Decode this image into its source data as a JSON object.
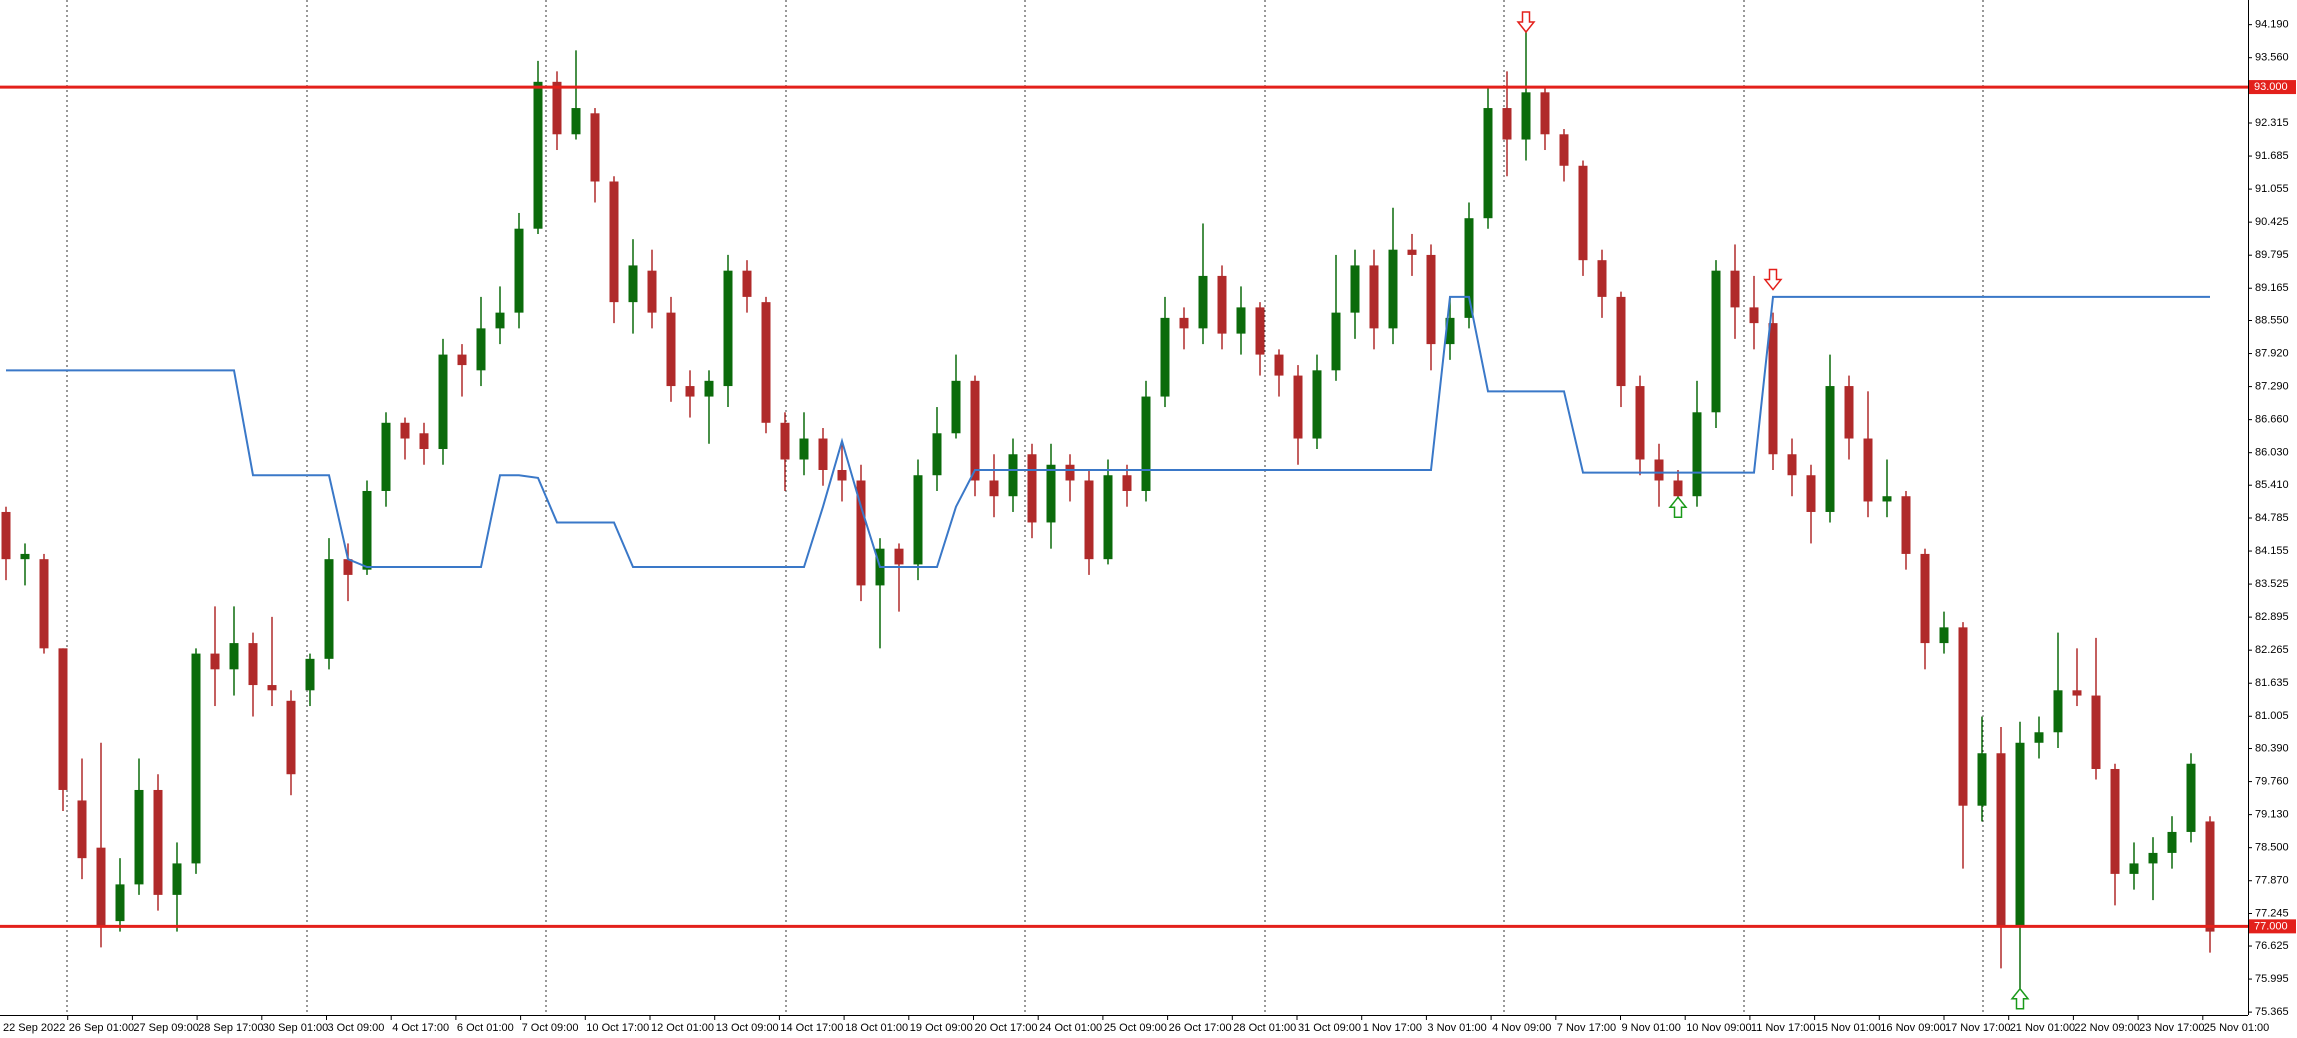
{
  "chart_data": {
    "type": "candlestick",
    "ylim": [
      75.31,
      94.66
    ],
    "up_color": "#0b6b0b",
    "down_color": "#b02a2a",
    "open": [
      84.9,
      84.0,
      84.0,
      82.3,
      79.4,
      78.5,
      77.1,
      77.8,
      79.6,
      77.6,
      78.2,
      82.2,
      81.9,
      82.4,
      81.6,
      81.3,
      81.5,
      82.1,
      84.0,
      83.8,
      85.3,
      86.6,
      86.4,
      86.1,
      87.9,
      87.6,
      88.4,
      88.7,
      90.3,
      93.1,
      92.1,
      92.5,
      91.2,
      88.9,
      89.5,
      88.7,
      87.3,
      87.1,
      87.3,
      89.5,
      88.9,
      86.6,
      85.9,
      86.3,
      85.7,
      85.5,
      83.5,
      84.2,
      83.9,
      85.6,
      86.4,
      87.4,
      85.5,
      85.2,
      86.0,
      84.7,
      85.8,
      85.5,
      84.0,
      85.6,
      85.3,
      87.1,
      88.6,
      88.4,
      89.4,
      88.3,
      88.8,
      87.9,
      87.5,
      86.3,
      87.6,
      88.7,
      89.6,
      88.4,
      89.9,
      89.8,
      88.1,
      88.6,
      90.5,
      92.6,
      92.0,
      92.9,
      92.1,
      91.5,
      89.7,
      89.0,
      87.3,
      85.9,
      85.5,
      85.2,
      86.8,
      89.5,
      88.8,
      88.5,
      86.0,
      85.6,
      84.9,
      87.3,
      86.3,
      85.1,
      85.2,
      84.1,
      82.4,
      82.7,
      79.3,
      80.3,
      77.0,
      80.5,
      80.7,
      81.5,
      81.4,
      80.0,
      78.0,
      78.2,
      78.4,
      78.8,
      79.0
    ],
    "high": [
      85.0,
      84.3,
      84.1,
      82.3,
      80.2,
      80.5,
      78.3,
      80.2,
      79.9,
      78.6,
      82.3,
      83.1,
      83.1,
      82.6,
      82.9,
      81.5,
      82.2,
      84.4,
      84.3,
      85.5,
      86.8,
      86.7,
      86.6,
      88.2,
      88.1,
      89.0,
      89.2,
      90.6,
      93.5,
      93.3,
      93.7,
      92.6,
      91.3,
      90.1,
      89.9,
      89.0,
      87.6,
      87.6,
      89.8,
      89.7,
      89.0,
      86.8,
      86.8,
      86.5,
      86.2,
      85.8,
      84.4,
      84.3,
      85.9,
      86.9,
      87.9,
      87.5,
      86.0,
      86.3,
      86.2,
      86.2,
      86.0,
      85.7,
      85.9,
      85.8,
      87.4,
      89.0,
      88.8,
      90.4,
      89.6,
      89.2,
      88.9,
      88.0,
      87.7,
      87.9,
      89.8,
      89.9,
      89.9,
      90.7,
      90.2,
      90.0,
      89.0,
      90.8,
      93.0,
      93.3,
      94.2,
      93.0,
      92.2,
      91.6,
      89.9,
      89.1,
      87.5,
      86.2,
      85.7,
      87.4,
      89.7,
      90.0,
      89.4,
      88.7,
      86.3,
      85.8,
      87.9,
      87.5,
      87.2,
      85.9,
      85.3,
      84.2,
      83.0,
      82.8,
      81.0,
      80.8,
      80.9,
      81.0,
      82.6,
      82.3,
      82.5,
      80.1,
      78.6,
      78.7,
      79.1,
      80.3,
      79.1
    ],
    "low": [
      83.6,
      83.5,
      82.2,
      79.2,
      77.9,
      76.6,
      76.9,
      77.6,
      77.3,
      76.9,
      78.0,
      81.2,
      81.4,
      81.0,
      81.2,
      79.5,
      81.2,
      81.9,
      83.2,
      83.7,
      85.0,
      85.9,
      85.8,
      85.8,
      87.1,
      87.3,
      88.1,
      88.4,
      90.2,
      91.8,
      92.0,
      90.8,
      88.5,
      88.3,
      88.4,
      87.0,
      86.7,
      86.2,
      86.9,
      88.7,
      86.4,
      85.3,
      85.6,
      85.4,
      85.1,
      83.2,
      82.3,
      83.0,
      83.6,
      85.3,
      86.3,
      85.2,
      84.8,
      84.9,
      84.4,
      84.2,
      85.1,
      83.7,
      83.9,
      85.0,
      85.1,
      86.9,
      88.0,
      88.1,
      88.0,
      87.9,
      87.5,
      87.1,
      85.8,
      86.1,
      87.4,
      88.2,
      88.0,
      88.1,
      89.4,
      87.6,
      87.8,
      88.4,
      90.3,
      91.3,
      91.6,
      91.8,
      91.2,
      89.4,
      88.6,
      86.9,
      85.6,
      85.0,
      84.9,
      85.0,
      86.5,
      88.2,
      88.0,
      85.7,
      85.2,
      84.3,
      84.7,
      85.9,
      84.8,
      84.8,
      83.8,
      81.9,
      82.2,
      78.1,
      79.0,
      76.2,
      75.7,
      80.2,
      80.4,
      81.2,
      79.8,
      77.4,
      77.7,
      77.5,
      78.1,
      78.6,
      76.5
    ],
    "close": [
      84.0,
      84.1,
      82.3,
      79.6,
      78.3,
      77.0,
      77.8,
      79.6,
      77.6,
      78.2,
      82.2,
      81.9,
      82.4,
      81.6,
      81.5,
      79.9,
      82.1,
      84.0,
      83.7,
      85.3,
      86.6,
      86.3,
      86.1,
      87.9,
      87.7,
      88.4,
      88.7,
      90.3,
      93.1,
      92.1,
      92.6,
      91.2,
      88.9,
      89.6,
      88.7,
      87.3,
      87.1,
      87.4,
      89.5,
      89.0,
      86.6,
      85.9,
      86.3,
      85.7,
      85.5,
      83.5,
      84.2,
      83.9,
      85.6,
      86.4,
      87.4,
      85.5,
      85.2,
      86.0,
      84.7,
      85.8,
      85.5,
      84.0,
      85.6,
      85.3,
      87.1,
      88.6,
      88.4,
      89.4,
      88.3,
      88.8,
      87.9,
      87.5,
      86.3,
      87.6,
      88.7,
      89.6,
      88.4,
      89.9,
      89.8,
      88.1,
      88.6,
      90.5,
      92.6,
      92.0,
      92.9,
      92.1,
      91.5,
      89.7,
      89.0,
      87.3,
      85.9,
      85.5,
      85.2,
      86.8,
      89.5,
      88.8,
      88.5,
      86.0,
      85.6,
      84.9,
      87.3,
      86.3,
      85.1,
      85.2,
      84.1,
      82.4,
      82.7,
      79.3,
      80.3,
      77.0,
      80.5,
      80.7,
      81.5,
      81.4,
      80.0,
      78.0,
      78.2,
      78.4,
      78.8,
      80.1,
      76.9
    ],
    "indicator": {
      "color": "#3a78c8",
      "values": [
        87.6,
        87.6,
        87.6,
        87.6,
        87.6,
        87.6,
        87.6,
        87.6,
        87.6,
        87.6,
        87.6,
        87.6,
        87.6,
        85.6,
        85.6,
        85.6,
        85.6,
        85.6,
        84.0,
        83.85,
        83.85,
        83.85,
        83.85,
        83.85,
        83.85,
        83.85,
        85.6,
        85.6,
        85.55,
        84.7,
        84.7,
        84.7,
        84.7,
        83.85,
        83.85,
        83.85,
        83.85,
        83.85,
        83.85,
        83.85,
        83.85,
        83.85,
        83.85,
        85.0,
        86.25,
        85.0,
        83.85,
        83.85,
        83.85,
        83.85,
        85.0,
        85.7,
        85.7,
        85.7,
        85.7,
        85.7,
        85.7,
        85.7,
        85.7,
        85.7,
        85.7,
        85.7,
        85.7,
        85.7,
        85.7,
        85.7,
        85.7,
        85.7,
        85.7,
        85.7,
        85.7,
        85.7,
        85.7,
        85.7,
        85.7,
        85.7,
        89.0,
        89.0,
        87.2,
        87.2,
        87.2,
        87.2,
        87.2,
        85.65,
        85.65,
        85.65,
        85.65,
        85.65,
        85.65,
        85.65,
        85.65,
        85.65,
        85.65,
        89.0,
        89.0,
        89.0,
        89.0,
        89.0,
        89.0,
        89.0,
        89.0,
        89.0,
        89.0,
        89.0,
        89.0,
        89.0,
        89.0,
        89.0,
        89.0,
        89.0,
        89.0,
        89.0,
        89.0,
        89.0,
        89.0,
        89.0,
        89.0
      ]
    },
    "levels": [
      {
        "value": 93,
        "label": "93.000"
      },
      {
        "value": 77,
        "label": "77.000"
      }
    ],
    "level_color": "#e3201b",
    "signals": [
      {
        "direction": "down",
        "value": 94.05,
        "color": "#e3201b"
      },
      {
        "direction": "down",
        "value": 89.14,
        "color": "#e3201b"
      },
      {
        "direction": "up",
        "value": 85.18,
        "color": "#1a9a1a"
      },
      {
        "direction": "up",
        "value": 75.81,
        "color": "#1a9a1a"
      }
    ],
    "yticks": [
      {
        "value": 94.19,
        "label": "94.190"
      },
      {
        "value": 93.56,
        "label": "93.560"
      },
      {
        "value": 92.315,
        "label": "92.315"
      },
      {
        "value": 91.685,
        "label": "91.685"
      },
      {
        "value": 91.055,
        "label": "91.055"
      },
      {
        "value": 90.425,
        "label": "90.425"
      },
      {
        "value": 89.795,
        "label": "89.795"
      },
      {
        "value": 89.165,
        "label": "89.165"
      },
      {
        "value": 88.55,
        "label": "88.550"
      },
      {
        "value": 87.92,
        "label": "87.920"
      },
      {
        "value": 87.29,
        "label": "87.290"
      },
      {
        "value": 86.66,
        "label": "86.660"
      },
      {
        "value": 86.03,
        "label": "86.030"
      },
      {
        "value": 85.41,
        "label": "85.410"
      },
      {
        "value": 84.785,
        "label": "84.785"
      },
      {
        "value": 84.155,
        "label": "84.155"
      },
      {
        "value": 83.525,
        "label": "83.525"
      },
      {
        "value": 82.895,
        "label": "82.895"
      },
      {
        "value": 82.265,
        "label": "82.265"
      },
      {
        "value": 81.635,
        "label": "81.635"
      },
      {
        "value": 81.005,
        "label": "81.005"
      },
      {
        "value": 80.39,
        "label": "80.390"
      },
      {
        "value": 79.76,
        "label": "79.760"
      },
      {
        "value": 79.13,
        "label": "79.130"
      },
      {
        "value": 78.5,
        "label": "78.500"
      },
      {
        "value": 77.87,
        "label": "77.870"
      },
      {
        "value": 77.245,
        "label": "77.245"
      },
      {
        "value": 76.625,
        "label": "76.625"
      },
      {
        "value": 75.995,
        "label": "75.995"
      },
      {
        "value": 75.365,
        "label": "75.365"
      }
    ],
    "x_labels": [
      "22 Sep 2022",
      "26 Sep 01:00",
      "27 Sep 09:00",
      "28 Sep 17:00",
      "30 Sep 01:00",
      "3 Oct 09:00",
      "4 Oct 17:00",
      "6 Oct 01:00",
      "7 Oct 09:00",
      "10 Oct 17:00",
      "12 Oct 01:00",
      "13 Oct 09:00",
      "14 Oct 17:00",
      "18 Oct 01:00",
      "19 Oct 09:00",
      "20 Oct 17:00",
      "24 Oct 01:00",
      "25 Oct 09:00",
      "26 Oct 17:00",
      "28 Oct 01:00",
      "31 Oct 09:00",
      "1 Nov 17:00",
      "3 Nov 01:00",
      "4 Nov 09:00",
      "7 Nov 17:00",
      "9 Nov 01:00",
      "10 Nov 09:00",
      "11 Nov 17:00",
      "15 Nov 01:00",
      "16 Nov 09:00",
      "17 Nov 17:00",
      "21 Nov 01:00",
      "22 Nov 09:00",
      "23 Nov 17:00",
      "25 Nov 01:00"
    ]
  }
}
